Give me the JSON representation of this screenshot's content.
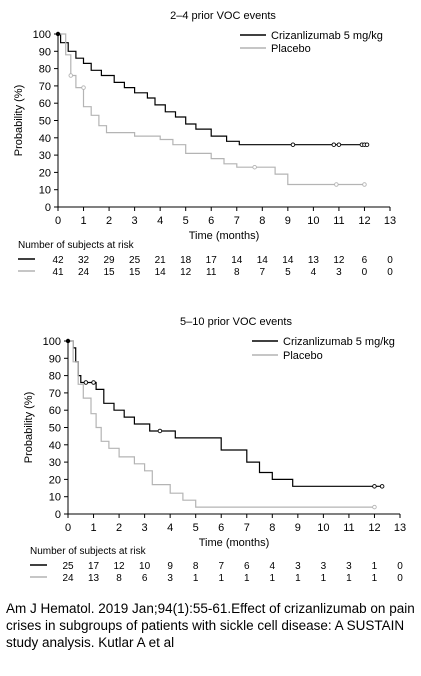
{
  "chart_data": [
    {
      "type": "line",
      "title": "2–4 prior VOC events",
      "xlabel": "Time (months)",
      "ylabel": "Probability (%)",
      "xlim": [
        0,
        13
      ],
      "ylim": [
        0,
        100
      ],
      "xticks": [
        "0",
        "1",
        "2",
        "3",
        "4",
        "5",
        "6",
        "7",
        "8",
        "9",
        "10",
        "11",
        "12",
        "13"
      ],
      "yticks": [
        "0",
        "10",
        "20",
        "30",
        "40",
        "50",
        "60",
        "70",
        "80",
        "90",
        "100"
      ],
      "legend_position": "top-right",
      "series": [
        {
          "name": "Crizanlizumab 5 mg/kg",
          "color": "#000000",
          "points": [
            [
              0,
              100
            ],
            [
              0.1,
              100
            ],
            [
              0.1,
              95
            ],
            [
              0.4,
              95
            ],
            [
              0.4,
              90
            ],
            [
              0.7,
              90
            ],
            [
              0.7,
              86
            ],
            [
              1.0,
              86
            ],
            [
              1.0,
              83
            ],
            [
              1.3,
              83
            ],
            [
              1.3,
              79
            ],
            [
              1.7,
              79
            ],
            [
              1.7,
              76
            ],
            [
              2.2,
              76
            ],
            [
              2.2,
              72
            ],
            [
              2.6,
              72
            ],
            [
              2.6,
              69
            ],
            [
              3.0,
              69
            ],
            [
              3.0,
              66
            ],
            [
              3.5,
              66
            ],
            [
              3.5,
              63
            ],
            [
              3.8,
              63
            ],
            [
              3.8,
              59
            ],
            [
              4.2,
              59
            ],
            [
              4.2,
              55
            ],
            [
              4.6,
              55
            ],
            [
              4.6,
              52
            ],
            [
              5.0,
              52
            ],
            [
              5.0,
              48
            ],
            [
              5.4,
              48
            ],
            [
              5.4,
              45
            ],
            [
              6.0,
              45
            ],
            [
              6.0,
              41
            ],
            [
              6.6,
              41
            ],
            [
              6.6,
              38
            ],
            [
              7.1,
              38
            ],
            [
              7.1,
              36
            ],
            [
              12.1,
              36
            ]
          ],
          "censored": [
            [
              9.2,
              36
            ],
            [
              10.8,
              36
            ],
            [
              11.0,
              36
            ],
            [
              11.9,
              36
            ],
            [
              12.0,
              36
            ],
            [
              12.1,
              36
            ]
          ]
        },
        {
          "name": "Placebo",
          "color": "#b4b4b4",
          "points": [
            [
              0,
              100
            ],
            [
              0.3,
              100
            ],
            [
              0.3,
              88
            ],
            [
              0.5,
              88
            ],
            [
              0.5,
              76
            ],
            [
              0.7,
              76
            ],
            [
              0.7,
              69
            ],
            [
              1.0,
              69
            ],
            [
              1.0,
              58
            ],
            [
              1.3,
              58
            ],
            [
              1.3,
              53
            ],
            [
              1.6,
              53
            ],
            [
              1.6,
              47
            ],
            [
              1.9,
              47
            ],
            [
              1.9,
              43
            ],
            [
              3.0,
              43
            ],
            [
              3.0,
              41
            ],
            [
              4.0,
              41
            ],
            [
              4.0,
              39
            ],
            [
              4.5,
              39
            ],
            [
              4.5,
              36
            ],
            [
              5.0,
              36
            ],
            [
              5.0,
              31
            ],
            [
              6.0,
              31
            ],
            [
              6.0,
              28
            ],
            [
              6.5,
              28
            ],
            [
              6.5,
              25
            ],
            [
              7.0,
              25
            ],
            [
              7.0,
              23
            ],
            [
              8.5,
              23
            ],
            [
              8.5,
              19
            ],
            [
              9.0,
              19
            ],
            [
              9.0,
              13
            ],
            [
              12.0,
              13
            ]
          ],
          "censored": [
            [
              0.5,
              76
            ],
            [
              1.0,
              69
            ],
            [
              7.7,
              23
            ],
            [
              10.9,
              13
            ],
            [
              12.0,
              13
            ]
          ]
        }
      ],
      "risk_table": {
        "header": "Number of subjects at risk",
        "times": [
          0,
          1,
          2,
          3,
          4,
          5,
          6,
          7,
          8,
          9,
          10,
          11,
          12,
          13
        ],
        "rows": [
          {
            "series": "Crizanlizumab 5 mg/kg",
            "counts": [
              "42",
              "32",
              "29",
              "25",
              "21",
              "18",
              "17",
              "14",
              "14",
              "14",
              "13",
              "12",
              "6",
              "0"
            ]
          },
          {
            "series": "Placebo",
            "counts": [
              "41",
              "24",
              "15",
              "15",
              "14",
              "12",
              "11",
              "8",
              "7",
              "5",
              "4",
              "3",
              "0",
              "0"
            ]
          }
        ]
      }
    },
    {
      "type": "line",
      "title": "5–10 prior VOC events",
      "xlabel": "Time (months)",
      "ylabel": "Probability (%)",
      "xlim": [
        0,
        13
      ],
      "ylim": [
        0,
        100
      ],
      "xticks": [
        "0",
        "1",
        "2",
        "3",
        "4",
        "5",
        "6",
        "7",
        "8",
        "9",
        "10",
        "11",
        "12",
        "13"
      ],
      "yticks": [
        "0",
        "10",
        "20",
        "30",
        "40",
        "50",
        "60",
        "70",
        "80",
        "90",
        "100"
      ],
      "legend_position": "top-right",
      "series": [
        {
          "name": "Crizanlizumab 5 mg/kg",
          "color": "#000000",
          "points": [
            [
              0,
              100
            ],
            [
              0.2,
              100
            ],
            [
              0.2,
              96
            ],
            [
              0.3,
              96
            ],
            [
              0.3,
              88
            ],
            [
              0.4,
              88
            ],
            [
              0.4,
              80
            ],
            [
              0.5,
              80
            ],
            [
              0.5,
              76
            ],
            [
              1.1,
              76
            ],
            [
              1.1,
              72
            ],
            [
              1.4,
              72
            ],
            [
              1.4,
              64
            ],
            [
              1.8,
              64
            ],
            [
              1.8,
              60
            ],
            [
              2.2,
              60
            ],
            [
              2.2,
              56
            ],
            [
              2.6,
              56
            ],
            [
              2.6,
              52
            ],
            [
              3.2,
              52
            ],
            [
              3.2,
              48
            ],
            [
              4.2,
              48
            ],
            [
              4.2,
              44
            ],
            [
              6.0,
              44
            ],
            [
              6.0,
              37
            ],
            [
              7.0,
              37
            ],
            [
              7.0,
              30
            ],
            [
              7.5,
              30
            ],
            [
              7.5,
              24
            ],
            [
              8.0,
              24
            ],
            [
              8.0,
              20
            ],
            [
              8.8,
              20
            ],
            [
              8.8,
              16
            ],
            [
              12.3,
              16
            ]
          ],
          "censored": [
            [
              0.7,
              76
            ],
            [
              1.0,
              76
            ],
            [
              3.6,
              48
            ],
            [
              12.0,
              16
            ],
            [
              12.3,
              16
            ]
          ]
        },
        {
          "name": "Placebo",
          "color": "#b4b4b4",
          "points": [
            [
              0,
              100
            ],
            [
              0.2,
              100
            ],
            [
              0.2,
              88
            ],
            [
              0.4,
              88
            ],
            [
              0.4,
              75
            ],
            [
              0.6,
              75
            ],
            [
              0.6,
              67
            ],
            [
              0.9,
              67
            ],
            [
              0.9,
              58
            ],
            [
              1.1,
              58
            ],
            [
              1.1,
              50
            ],
            [
              1.3,
              50
            ],
            [
              1.3,
              42
            ],
            [
              1.6,
              42
            ],
            [
              1.6,
              38
            ],
            [
              2.0,
              38
            ],
            [
              2.0,
              33
            ],
            [
              2.6,
              33
            ],
            [
              2.6,
              29
            ],
            [
              3.0,
              29
            ],
            [
              3.0,
              25
            ],
            [
              3.3,
              25
            ],
            [
              3.3,
              17
            ],
            [
              4.0,
              17
            ],
            [
              4.0,
              12
            ],
            [
              4.5,
              12
            ],
            [
              4.5,
              8
            ],
            [
              5.0,
              8
            ],
            [
              5.0,
              4
            ],
            [
              12.0,
              4
            ]
          ],
          "censored": [
            [
              12.0,
              4
            ]
          ]
        }
      ],
      "risk_table": {
        "header": "Number of subjects at risk",
        "times": [
          0,
          1,
          2,
          3,
          4,
          5,
          6,
          7,
          8,
          9,
          10,
          11,
          12,
          13
        ],
        "rows": [
          {
            "series": "Crizanlizumab 5 mg/kg",
            "counts": [
              "25",
              "17",
              "12",
              "10",
              "9",
              "8",
              "7",
              "6",
              "4",
              "3",
              "3",
              "3",
              "1",
              "0"
            ]
          },
          {
            "series": "Placebo",
            "counts": [
              "24",
              "13",
              "8",
              "6",
              "3",
              "1",
              "1",
              "1",
              "1",
              "1",
              "1",
              "1",
              "1",
              "0"
            ]
          }
        ]
      }
    }
  ],
  "caption": "Am J Hematol. 2019 Jan;94(1):55-61.Effect of crizanlizumab on pain crises in subgroups of patients with sickle cell disease: A SUSTAIN study analysis. Kutlar A et al"
}
